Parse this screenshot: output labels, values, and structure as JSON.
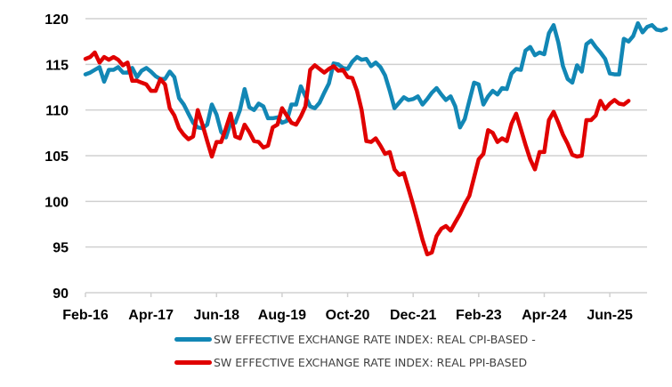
{
  "chart_data": {
    "type": "line",
    "title": "",
    "xlabel": "",
    "ylabel": "",
    "ylim": [
      90,
      120
    ],
    "yticks": [
      90,
      95,
      100,
      105,
      110,
      115,
      120
    ],
    "grid": true,
    "legend_position": "bottom",
    "x_start": "Feb-16",
    "x_frequency": "monthly",
    "xtick_labels": [
      "Feb-16",
      "Apr-17",
      "Jun-18",
      "Aug-19",
      "Oct-20",
      "Dec-21",
      "Feb-23",
      "Apr-24",
      "Jun-25"
    ],
    "xtick_interval_months": 14,
    "series": [
      {
        "name": "SW EFFECTIVE EXCHANGE RATE INDEX: REAL CPI-BASED -",
        "color": "#1287b5",
        "values": [
          113.9,
          114.1,
          114.4,
          114.7,
          113.1,
          114.4,
          114.4,
          114.7,
          114.1,
          114.1,
          114.6,
          113.6,
          114.3,
          114.6,
          114.2,
          113.7,
          113.4,
          113.4,
          114.2,
          113.6,
          111.3,
          110.6,
          109.6,
          108.6,
          108.1,
          108.0,
          108.4,
          110.6,
          109.5,
          107.6,
          107.0,
          108.6,
          108.6,
          110.0,
          112.3,
          110.3,
          110.0,
          110.7,
          110.4,
          109.1,
          109.1,
          109.2,
          108.6,
          108.8,
          110.6,
          110.6,
          112.6,
          111.5,
          110.4,
          110.2,
          110.8,
          111.9,
          112.9,
          115.1,
          115.0,
          114.6,
          114.5,
          115.3,
          115.8,
          115.5,
          115.6,
          114.8,
          115.2,
          114.7,
          113.8,
          112.1,
          110.2,
          110.8,
          111.4,
          111.1,
          111.2,
          111.5,
          110.6,
          111.2,
          111.9,
          112.4,
          111.7,
          111.1,
          111.5,
          110.4,
          108.1,
          109.0,
          111.0,
          113.0,
          112.8,
          110.6,
          111.5,
          112.1,
          111.7,
          112.4,
          112.3,
          114.0,
          114.5,
          114.4,
          116.5,
          116.9,
          116.0,
          116.3,
          116.1,
          118.4,
          119.3,
          117.4,
          114.8,
          113.4,
          113.0,
          114.9,
          114.2,
          117.2,
          117.6,
          116.9,
          116.3,
          115.6,
          114.0,
          113.9,
          113.9,
          117.8,
          117.5,
          118.1,
          119.5,
          118.5,
          119.1,
          119.3,
          118.8,
          118.7,
          118.9
        ]
      },
      {
        "name": "SW EFFECTIVE EXCHANGE RATE INDEX: REAL PPI-BASED",
        "color": "#e00000",
        "values": [
          115.6,
          115.8,
          116.3,
          115.2,
          115.8,
          115.5,
          115.8,
          115.5,
          114.9,
          115.2,
          113.2,
          113.2,
          113.0,
          112.8,
          112.1,
          112.1,
          113.4,
          112.8,
          110.2,
          109.4,
          108.0,
          107.3,
          106.8,
          107.1,
          110.0,
          108.4,
          106.6,
          104.9,
          106.5,
          106.5,
          108.0,
          109.6,
          107.1,
          106.9,
          108.4,
          107.6,
          106.6,
          106.5,
          105.9,
          106.1,
          108.1,
          108.4,
          110.2,
          109.4,
          108.6,
          108.4,
          109.3,
          110.4,
          114.4,
          114.9,
          114.5,
          114.1,
          114.5,
          114.8,
          114.3,
          114.4,
          113.6,
          113.5,
          112.1,
          110.0,
          106.6,
          106.5,
          106.9,
          106.1,
          105.2,
          105.4,
          103.5,
          102.9,
          103.1,
          101.4,
          99.6,
          97.7,
          95.8,
          94.2,
          94.4,
          96.2,
          97.0,
          97.3,
          96.8,
          97.7,
          98.6,
          99.7,
          100.6,
          102.6,
          104.6,
          105.2,
          107.8,
          107.5,
          106.5,
          106.9,
          106.6,
          108.5,
          109.6,
          107.9,
          106.2,
          104.6,
          103.5,
          105.4,
          105.4,
          108.9,
          109.8,
          108.6,
          107.3,
          106.3,
          105.1,
          104.9,
          105.0,
          108.9,
          108.9,
          109.4,
          111.0,
          110.1,
          110.7,
          111.1,
          110.7,
          110.6,
          111.0
        ]
      }
    ]
  },
  "legend": {
    "items": [
      {
        "label": "SW EFFECTIVE EXCHANGE RATE INDEX: REAL CPI-BASED -",
        "color": "#1287b5"
      },
      {
        "label": "SW EFFECTIVE EXCHANGE RATE INDEX: REAL PPI-BASED",
        "color": "#e00000"
      }
    ]
  }
}
